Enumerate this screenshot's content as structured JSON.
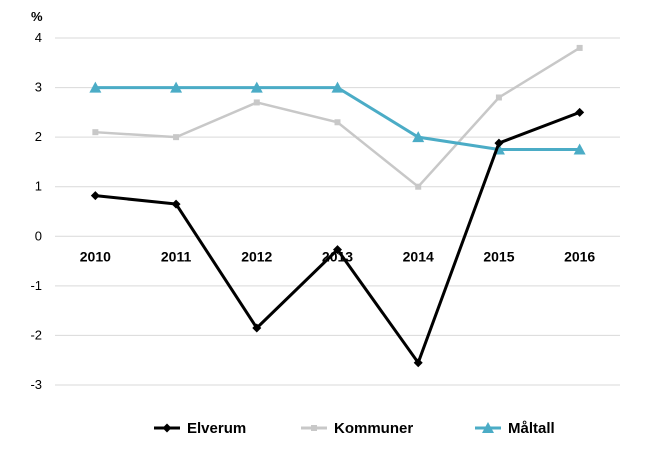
{
  "chart_data": {
    "type": "line",
    "unit_label": "%",
    "categories": [
      "2010",
      "2011",
      "2012",
      "2013",
      "2014",
      "2015",
      "2016"
    ],
    "y_ticks": [
      "4",
      "3",
      "2",
      "1",
      "0",
      "-1",
      "-2",
      "-3"
    ],
    "ylim": [
      -3,
      4
    ],
    "grid": true,
    "legend_position": "bottom",
    "series": [
      {
        "name": "Elverum",
        "color": "#000000",
        "marker": "diamond",
        "values": [
          0.82,
          0.65,
          -1.85,
          -0.27,
          -2.55,
          1.88,
          2.5
        ]
      },
      {
        "name": "Kommuner",
        "color": "#c8c8c8",
        "marker": "square",
        "values": [
          2.1,
          2.0,
          2.7,
          2.3,
          1.0,
          2.8,
          3.8
        ]
      },
      {
        "name": "Måltall",
        "color": "#4bacc6",
        "marker": "triangle",
        "values": [
          3.0,
          3.0,
          3.0,
          3.0,
          2.0,
          1.75,
          1.75
        ]
      }
    ]
  }
}
